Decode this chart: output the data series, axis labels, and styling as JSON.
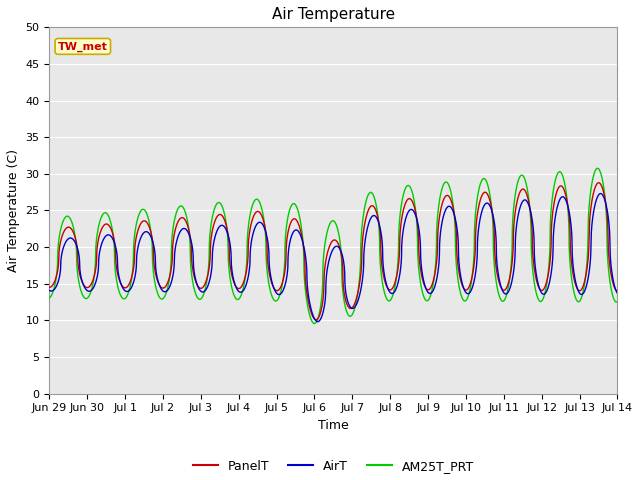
{
  "title": "Air Temperature",
  "xlabel": "Time",
  "ylabel": "Air Temperature (C)",
  "ylim": [
    0,
    50
  ],
  "yticks": [
    0,
    5,
    10,
    15,
    20,
    25,
    30,
    35,
    40,
    45,
    50
  ],
  "legend_labels": [
    "PanelT",
    "AirT",
    "AM25T_PRT"
  ],
  "legend_colors": [
    "#cc0000",
    "#0000cc",
    "#00cc00"
  ],
  "annotation_text": "TW_met",
  "annotation_color": "#cc0000",
  "annotation_bg": "#ffffcc",
  "annotation_border": "#ccaa00",
  "plot_bg_color": "#e8e8e8",
  "fig_bg_color": "#ffffff",
  "line_width": 1.0,
  "x_tick_labels": [
    "Jun 29",
    "Jun 30",
    "Jul 1",
    "Jul 2",
    "Jul 3",
    "Jul 4",
    "Jul 5",
    "Jul 6",
    "Jul 7",
    "Jul 8",
    "Jul 9",
    "Jul 10",
    "Jul 11",
    "Jul 12",
    "Jul 13",
    "Jul 14"
  ],
  "title_fontsize": 11,
  "axis_label_fontsize": 9,
  "tick_fontsize": 8
}
